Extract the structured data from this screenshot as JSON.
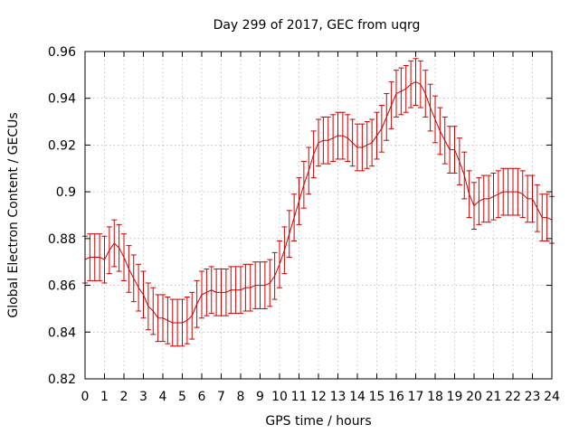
{
  "chart_data": {
    "type": "line",
    "title": "Day 299 of 2017, GEC from uqrg",
    "xlabel": "GPS time / hours",
    "ylabel": "Global Electron Content / GECUs",
    "xlim": [
      0,
      24
    ],
    "ylim": [
      0.82,
      0.96
    ],
    "x_ticks": [
      0,
      1,
      2,
      3,
      4,
      5,
      6,
      7,
      8,
      9,
      10,
      11,
      12,
      13,
      14,
      15,
      16,
      17,
      18,
      19,
      20,
      21,
      22,
      23,
      24
    ],
    "x_tick_labels": [
      "0",
      "1",
      "2",
      "3",
      "4",
      "5",
      "6",
      "7",
      "8",
      "9",
      "10",
      "11",
      "12",
      "13",
      "14",
      "15",
      "16",
      "17",
      "18",
      "19",
      "20",
      "21",
      "22",
      "23",
      "24"
    ],
    "y_ticks": [
      0.82,
      0.84,
      0.86,
      0.88,
      0.9,
      0.92,
      0.94,
      0.96
    ],
    "y_tick_labels": [
      "0.82",
      "0.84",
      "0.86",
      "0.88",
      "0.9",
      "0.92",
      "0.94",
      "0.96"
    ],
    "grid": true,
    "error": 0.01,
    "series": [
      {
        "color": "#cc0000",
        "x": [
          0,
          0.25,
          0.5,
          0.75,
          1,
          1.25,
          1.5,
          1.75,
          2,
          2.25,
          2.5,
          2.75,
          3,
          3.25,
          3.5,
          3.75,
          4,
          4.25,
          4.5,
          4.75,
          5,
          5.25,
          5.5,
          5.75,
          6,
          6.25,
          6.5,
          6.75,
          7,
          7.25,
          7.5,
          7.75,
          8,
          8.25,
          8.5,
          8.75,
          9,
          9.25,
          9.5,
          9.75,
          10,
          10.25,
          10.5,
          10.75,
          11,
          11.25,
          11.5,
          11.75,
          12,
          12.25,
          12.5,
          12.75,
          13,
          13.25,
          13.5,
          13.75,
          14,
          14.25,
          14.5,
          14.75,
          15,
          15.25,
          15.5,
          15.75,
          16,
          16.25,
          16.5,
          16.75,
          17,
          17.25,
          17.5,
          17.75,
          18,
          18.25,
          18.5,
          18.75,
          19,
          19.25,
          19.5,
          19.75,
          20,
          20.25,
          20.5,
          20.75,
          21,
          21.25,
          21.5,
          21.75,
          22,
          22.25,
          22.5,
          22.75,
          23,
          23.25,
          23.5,
          23.75,
          24
        ],
        "y": [
          0.871,
          0.872,
          0.872,
          0.872,
          0.871,
          0.875,
          0.878,
          0.876,
          0.872,
          0.867,
          0.863,
          0.859,
          0.856,
          0.851,
          0.849,
          0.846,
          0.846,
          0.845,
          0.844,
          0.844,
          0.844,
          0.845,
          0.847,
          0.852,
          0.856,
          0.857,
          0.858,
          0.857,
          0.857,
          0.857,
          0.858,
          0.858,
          0.858,
          0.859,
          0.859,
          0.86,
          0.86,
          0.86,
          0.861,
          0.864,
          0.869,
          0.875,
          0.882,
          0.889,
          0.896,
          0.903,
          0.909,
          0.916,
          0.921,
          0.922,
          0.922,
          0.923,
          0.924,
          0.924,
          0.923,
          0.921,
          0.919,
          0.919,
          0.92,
          0.921,
          0.924,
          0.927,
          0.932,
          0.937,
          0.942,
          0.943,
          0.944,
          0.946,
          0.947,
          0.946,
          0.942,
          0.936,
          0.931,
          0.926,
          0.922,
          0.918,
          0.918,
          0.913,
          0.907,
          0.899,
          0.894,
          0.896,
          0.897,
          0.897,
          0.898,
          0.899,
          0.9,
          0.9,
          0.9,
          0.9,
          0.899,
          0.897,
          0.897,
          0.893,
          0.889,
          0.889,
          0.888
        ]
      }
    ]
  }
}
